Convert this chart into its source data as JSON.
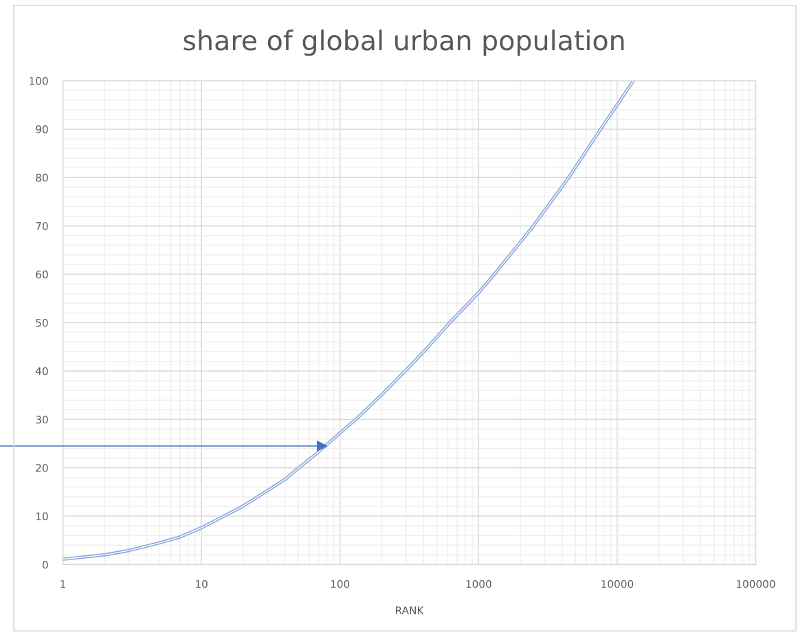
{
  "chart_data": {
    "type": "line",
    "title": "share of global urban population",
    "xlabel": "RANK",
    "x": [
      1,
      2,
      3,
      4,
      5,
      7,
      10,
      15,
      20,
      30,
      40,
      50,
      70,
      100,
      130,
      200,
      300,
      420,
      620,
      1000,
      1300,
      2440,
      4470,
      7640,
      10000,
      13100
    ],
    "series": [
      {
        "color": "#8eaadb",
        "values": [
          1.1,
          2.0,
          2.9,
          3.8,
          4.5,
          5.7,
          7.6,
          10.2,
          12.1,
          15.3,
          17.6,
          19.9,
          23.3,
          27.2,
          30.0,
          35.1,
          40.2,
          44.6,
          50.0,
          56.2,
          60.0,
          69.7,
          80.0,
          90.1,
          95.0,
          100
        ]
      }
    ],
    "line_style": "solid",
    "log": "x",
    "xlim": [
      1,
      100000
    ],
    "ylim": [
      0,
      100
    ],
    "xticks": [
      1,
      {
        "value": 2,
        "label": null
      },
      {
        "value": 3,
        "label": null
      },
      {
        "value": 4,
        "label": null
      },
      {
        "value": 5,
        "label": null
      },
      {
        "value": 6,
        "label": null
      },
      {
        "value": 7,
        "label": null
      },
      {
        "value": 8,
        "label": null
      },
      {
        "value": 9,
        "label": null
      },
      10,
      {
        "value": 20,
        "label": null
      },
      {
        "value": 30,
        "label": null
      },
      {
        "value": 40,
        "label": null
      },
      {
        "value": 50,
        "label": null
      },
      {
        "value": 60,
        "label": null
      },
      {
        "value": 70,
        "label": null
      },
      {
        "value": 80,
        "label": null
      },
      {
        "value": 90,
        "label": null
      },
      100,
      {
        "value": 200,
        "label": null
      },
      {
        "value": 300,
        "label": null
      },
      {
        "value": 400,
        "label": null
      },
      {
        "value": 500,
        "label": null
      },
      {
        "value": 600,
        "label": null
      },
      {
        "value": 700,
        "label": null
      },
      {
        "value": 800,
        "label": null
      },
      {
        "value": 900,
        "label": null
      },
      1000,
      {
        "value": 2000,
        "label": null
      },
      {
        "value": 3000,
        "label": null
      },
      {
        "value": 4000,
        "label": null
      },
      {
        "value": 5000,
        "label": null
      },
      {
        "value": 6000,
        "label": null
      },
      {
        "value": 7000,
        "label": null
      },
      {
        "value": 8000,
        "label": null
      },
      {
        "value": 9000,
        "label": null
      },
      10000,
      {
        "value": 20000,
        "label": null
      },
      {
        "value": 30000,
        "label": null
      },
      {
        "value": 40000,
        "label": null
      },
      {
        "value": 50000,
        "label": null
      },
      {
        "value": 60000,
        "label": null
      },
      {
        "value": 70000,
        "label": null
      },
      {
        "value": 80000,
        "label": null
      },
      {
        "value": 90000,
        "label": null
      },
      100000
    ],
    "yticks": [
      0,
      {
        "value": 2,
        "label": null
      },
      {
        "value": 4,
        "label": null
      },
      {
        "value": 6,
        "label": null
      },
      {
        "value": 8,
        "label": null
      },
      10,
      {
        "value": 12,
        "label": null
      },
      {
        "value": 14,
        "label": null
      },
      {
        "value": 16,
        "label": null
      },
      {
        "value": 18,
        "label": null
      },
      20,
      {
        "value": 22,
        "label": null
      },
      {
        "value": 24,
        "label": null
      },
      {
        "value": 26,
        "label": null
      },
      {
        "value": 28,
        "label": null
      },
      30,
      {
        "value": 32,
        "label": null
      },
      {
        "value": 34,
        "label": null
      },
      {
        "value": 36,
        "label": null
      },
      {
        "value": 38,
        "label": null
      },
      40,
      {
        "value": 42,
        "label": null
      },
      {
        "value": 44,
        "label": null
      },
      {
        "value": 46,
        "label": null
      },
      {
        "value": 48,
        "label": null
      },
      50,
      {
        "value": 52,
        "label": null
      },
      {
        "value": 54,
        "label": null
      },
      {
        "value": 56,
        "label": null
      },
      {
        "value": 58,
        "label": null
      },
      60,
      {
        "value": 62,
        "label": null
      },
      {
        "value": 64,
        "label": null
      },
      {
        "value": 66,
        "label": null
      },
      {
        "value": 68,
        "label": null
      },
      70,
      {
        "value": 72,
        "label": null
      },
      {
        "value": 74,
        "label": null
      },
      {
        "value": 76,
        "label": null
      },
      {
        "value": 78,
        "label": null
      },
      80,
      {
        "value": 82,
        "label": null
      },
      {
        "value": 84,
        "label": null
      },
      {
        "value": 86,
        "label": null
      },
      {
        "value": 88,
        "label": null
      },
      90,
      {
        "value": 92,
        "label": null
      },
      {
        "value": 94,
        "label": null
      },
      {
        "value": 96,
        "label": null
      },
      {
        "value": 98,
        "label": null
      },
      100
    ],
    "grid": true
  }
}
